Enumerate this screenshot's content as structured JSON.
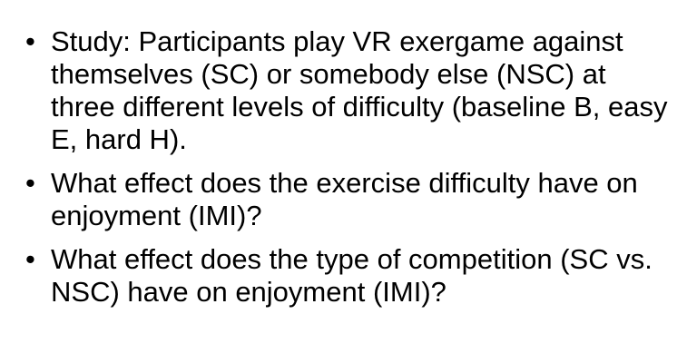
{
  "bullets": [
    {
      "marker": "•",
      "text": "Study: Participants play VR exergame against themselves (SC) or somebody else (NSC) at three different levels of difficulty (baseline B, easy E, hard H)."
    },
    {
      "marker": "•",
      "text": "What effect does the exercise difficulty have on enjoyment (IMI)?"
    },
    {
      "marker": "•",
      "text": "What effect does the type of competition (SC vs. NSC) have on enjoyment (IMI)?"
    }
  ]
}
